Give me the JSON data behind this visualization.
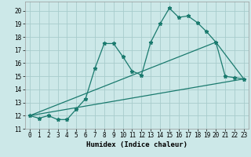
{
  "xlabel": "Humidex (Indice chaleur)",
  "bg_color": "#cce8e8",
  "line_color": "#1a7a6e",
  "grid_color": "#a8cccc",
  "xlim": [
    -0.5,
    23.5
  ],
  "ylim": [
    11.0,
    20.7
  ],
  "yticks": [
    11,
    12,
    13,
    14,
    15,
    16,
    17,
    18,
    19,
    20
  ],
  "xticks": [
    0,
    1,
    2,
    3,
    4,
    5,
    6,
    7,
    8,
    9,
    10,
    11,
    12,
    13,
    14,
    15,
    16,
    17,
    18,
    19,
    20,
    21,
    22,
    23
  ],
  "main_x": [
    0,
    1,
    2,
    3,
    4,
    5,
    6,
    7,
    8,
    9,
    10,
    11,
    12,
    13,
    14,
    15,
    16,
    17,
    18,
    19,
    20,
    21,
    22,
    23
  ],
  "main_y": [
    12.0,
    11.8,
    12.0,
    11.7,
    11.7,
    12.5,
    13.3,
    15.6,
    17.5,
    17.5,
    16.5,
    15.4,
    15.1,
    17.6,
    19.0,
    20.2,
    19.5,
    19.6,
    19.1,
    18.4,
    17.6,
    15.0,
    14.9,
    14.8
  ],
  "line1_x": [
    0,
    23
  ],
  "line1_y": [
    12.0,
    14.8
  ],
  "line2_x": [
    0,
    20,
    23
  ],
  "line2_y": [
    12.0,
    17.6,
    14.8
  ],
  "markersize": 3.5,
  "linewidth": 0.9,
  "tick_fontsize": 5.5,
  "xlabel_fontsize": 6.5
}
